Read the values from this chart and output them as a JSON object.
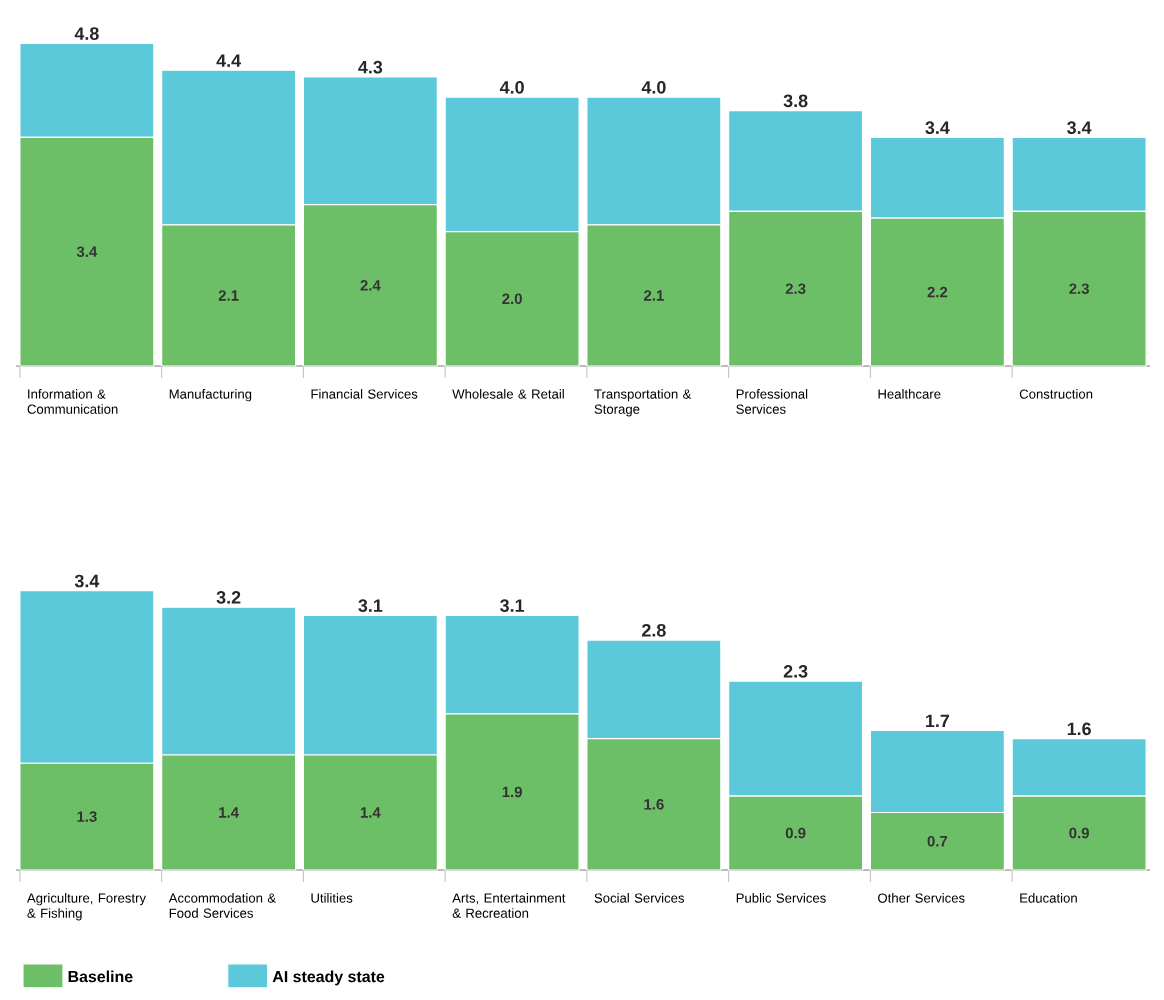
{
  "chart_data": [
    {
      "type": "bar",
      "stacked": true,
      "categories": [
        "Information & Communication",
        "Manufacturing",
        "Financial Services",
        "Wholesale & Retail",
        "Transportation & Storage",
        "Professional Services",
        "Healthcare",
        "Construction"
      ],
      "series": [
        {
          "color": "#6dbf67",
          "values": [
            3.4,
            2.1,
            2.4,
            2.0,
            2.1,
            2.3,
            2.2,
            2.3
          ],
          "value_labels": [
            "3.4",
            "2.1",
            "2.4",
            "2.0",
            "2.1",
            "2.3",
            "2.2",
            "2.3"
          ]
        },
        {
          "color": "#5bc9d9",
          "values": [
            1.4,
            2.3,
            1.9,
            2.0,
            1.9,
            1.5,
            1.2,
            1.1
          ]
        }
      ],
      "totals": [
        "4.8",
        "4.4",
        "4.3",
        "4.0",
        "4.0",
        "3.8",
        "3.4",
        "3.4"
      ]
    },
    {
      "type": "bar",
      "stacked": true,
      "categories": [
        "Agriculture, Forestry & Fishing",
        "Accommodation & Food Services",
        "Utilities",
        "Arts, Entertainment & Recreation",
        "Social Services",
        "Public Services",
        "Other Services",
        "Education"
      ],
      "series": [
        {
          "name": "Baseline",
          "color": "#6dbf67",
          "values": [
            1.3,
            1.4,
            1.4,
            1.9,
            1.6,
            0.9,
            0.7,
            0.9
          ],
          "value_labels": [
            "1.3",
            "1.4",
            "1.4",
            "1.9",
            "1.6",
            "0.9",
            "0.7",
            "0.9"
          ]
        },
        {
          "name": "AI steady state",
          "color": "#5bc9d9",
          "values": [
            2.1,
            1.8,
            1.7,
            1.2,
            1.2,
            1.4,
            1.0,
            0.7
          ]
        }
      ],
      "totals": [
        "3.4",
        "3.2",
        "3.1",
        "3.1",
        "2.8",
        "2.3",
        "1.7",
        "1.6"
      ],
      "legend": "bottom left"
    }
  ]
}
